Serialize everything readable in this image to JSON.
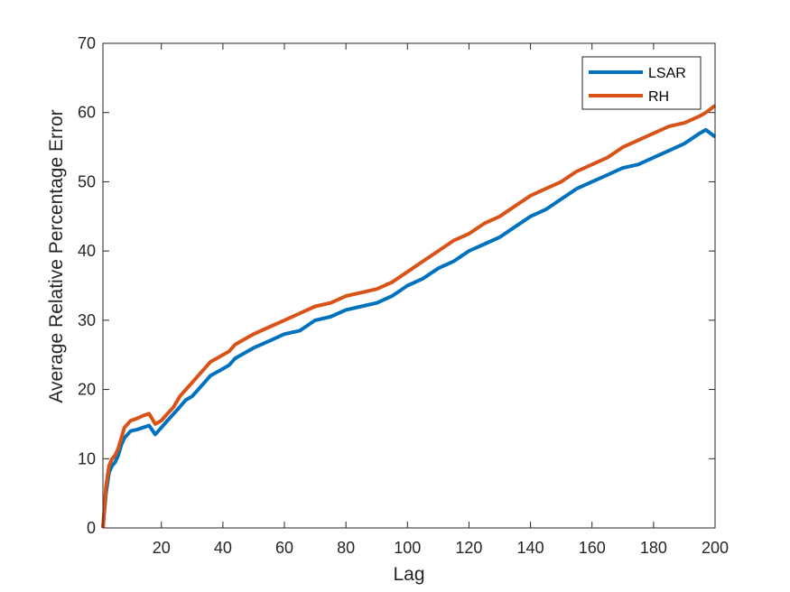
{
  "chart_data": {
    "type": "line",
    "title": "",
    "xlabel": "Lag",
    "ylabel": "Average Relative Percentage Error",
    "xlim": [
      1,
      200
    ],
    "ylim": [
      0,
      70
    ],
    "xticks": [
      20,
      40,
      60,
      80,
      100,
      120,
      140,
      160,
      180,
      200
    ],
    "yticks": [
      0,
      10,
      20,
      30,
      40,
      50,
      60,
      70
    ],
    "grid": false,
    "legend_position": "top-right",
    "series": [
      {
        "name": "LSAR",
        "color": "#0072BD",
        "x": [
          1,
          2,
          3,
          4,
          5,
          6,
          7,
          8,
          9,
          10,
          12,
          14,
          16,
          18,
          20,
          22,
          24,
          26,
          28,
          30,
          32,
          34,
          36,
          38,
          40,
          42,
          44,
          46,
          48,
          50,
          55,
          60,
          65,
          70,
          75,
          80,
          85,
          90,
          95,
          100,
          105,
          110,
          115,
          120,
          125,
          130,
          135,
          140,
          145,
          150,
          155,
          160,
          165,
          170,
          175,
          180,
          185,
          190,
          195,
          197,
          200
        ],
        "y": [
          0,
          5,
          8,
          9,
          9.5,
          10.5,
          12,
          13,
          13.5,
          14,
          14.2,
          14.5,
          14.8,
          13.5,
          14.5,
          15.5,
          16.5,
          17.5,
          18.5,
          19,
          20,
          21,
          22,
          22.5,
          23,
          23.5,
          24.5,
          25,
          25.5,
          26,
          27,
          28,
          28.5,
          30,
          30.5,
          31.5,
          32,
          32.5,
          33.5,
          35,
          36,
          37.5,
          38.5,
          40,
          41,
          42,
          43.5,
          45,
          46,
          47.5,
          49,
          50,
          51,
          52,
          52.5,
          53.5,
          54.5,
          55.5,
          57,
          57.5,
          56.5
        ]
      },
      {
        "name": "RH",
        "color": "#D95319",
        "x": [
          1,
          2,
          3,
          4,
          5,
          6,
          7,
          8,
          9,
          10,
          12,
          14,
          16,
          18,
          20,
          22,
          24,
          26,
          28,
          30,
          32,
          34,
          36,
          38,
          40,
          42,
          44,
          46,
          48,
          50,
          55,
          60,
          65,
          70,
          75,
          80,
          85,
          90,
          95,
          100,
          105,
          110,
          115,
          120,
          125,
          130,
          135,
          140,
          145,
          150,
          155,
          160,
          165,
          170,
          175,
          180,
          185,
          190,
          195,
          197,
          200
        ],
        "y": [
          0,
          6,
          9,
          10,
          10.5,
          11.5,
          13,
          14.5,
          15,
          15.5,
          15.8,
          16.2,
          16.5,
          15,
          15.5,
          16.5,
          17.5,
          19,
          20,
          21,
          22,
          23,
          24,
          24.5,
          25,
          25.5,
          26.5,
          27,
          27.5,
          28,
          29,
          30,
          31,
          32,
          32.5,
          33.5,
          34,
          34.5,
          35.5,
          37,
          38.5,
          40,
          41.5,
          42.5,
          44,
          45,
          46.5,
          48,
          49,
          50,
          51.5,
          52.5,
          53.5,
          55,
          56,
          57,
          58,
          58.5,
          59.5,
          60,
          61
        ]
      }
    ]
  }
}
